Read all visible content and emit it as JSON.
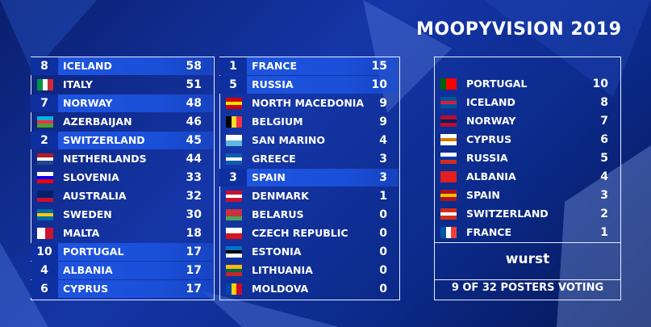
{
  "title": "MOOPYVISION 2019",
  "scoreboard": {
    "left": [
      {
        "points": 8,
        "country": "ICELAND",
        "score": 58
      },
      {
        "country": "ITALY",
        "score": 51
      },
      {
        "points": 7,
        "country": "NORWAY",
        "score": 48
      },
      {
        "country": "AZERBAIJAN",
        "score": 46
      },
      {
        "points": 2,
        "country": "SWITZERLAND",
        "score": 45
      },
      {
        "country": "NETHERLANDS",
        "score": 44
      },
      {
        "country": "SLOVENIA",
        "score": 33
      },
      {
        "country": "AUSTRALIA",
        "score": 32
      },
      {
        "country": "SWEDEN",
        "score": 30
      },
      {
        "country": "MALTA",
        "score": 18
      },
      {
        "points": 10,
        "country": "PORTUGAL",
        "score": 17
      },
      {
        "points": 4,
        "country": "ALBANIA",
        "score": 17
      },
      {
        "points": 6,
        "country": "CYPRUS",
        "score": 17
      }
    ],
    "middle": [
      {
        "points": 1,
        "country": "FRANCE",
        "score": 15
      },
      {
        "points": 5,
        "country": "RUSSIA",
        "score": 10
      },
      {
        "country": "NORTH MACEDONIA",
        "score": 9
      },
      {
        "country": "BELGIUM",
        "score": 9
      },
      {
        "country": "SAN MARINO",
        "score": 4
      },
      {
        "country": "GREECE",
        "score": 3
      },
      {
        "points": 3,
        "country": "SPAIN",
        "score": 3
      },
      {
        "country": "DENMARK",
        "score": 1
      },
      {
        "country": "BELARUS",
        "score": 0
      },
      {
        "country": "CZECH REPUBLIC",
        "score": 0
      },
      {
        "country": "ESTONIA",
        "score": 0
      },
      {
        "country": "LITHUANIA",
        "score": 0
      },
      {
        "country": "MOLDOVA",
        "score": 0
      }
    ]
  },
  "voter": {
    "given": [
      {
        "country": "PORTUGAL",
        "points": 10
      },
      {
        "country": "ICELAND",
        "points": 8
      },
      {
        "country": "NORWAY",
        "points": 7
      },
      {
        "country": "CYPRUS",
        "points": 6
      },
      {
        "country": "RUSSIA",
        "points": 5
      },
      {
        "country": "ALBANIA",
        "points": 4
      },
      {
        "country": "SPAIN",
        "points": 3
      },
      {
        "country": "SWITZERLAND",
        "points": 2
      },
      {
        "country": "FRANCE",
        "points": 1
      }
    ],
    "name": "wurst",
    "status": "9 OF 32 POSTERS VOTING"
  }
}
